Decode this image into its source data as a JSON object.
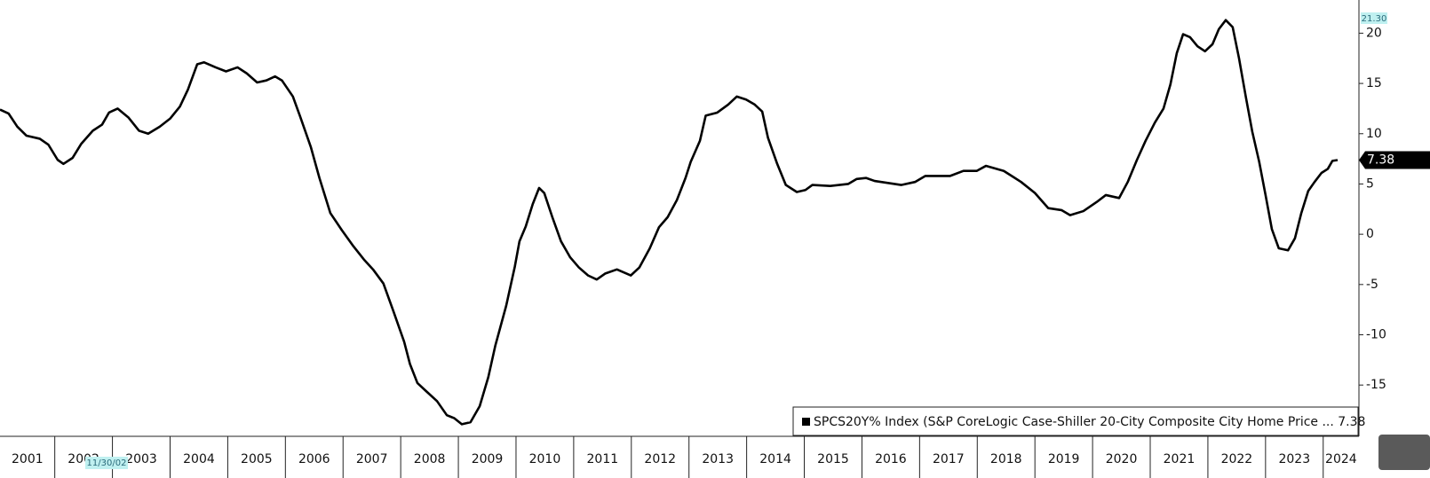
{
  "chart_data": {
    "type": "line",
    "series": [
      {
        "name": "SPCS20Y% Index (S&P CoreLogic Case-Shiller 20-City Composite City Home Price ... 7.38",
        "color": "#000000",
        "x": [
          2001.05,
          2001.2,
          2001.35,
          2001.51,
          2001.74,
          2001.89,
          2002.05,
          2002.15,
          2002.31,
          2002.46,
          2002.66,
          2002.82,
          2002.94,
          2003.09,
          2003.28,
          2003.46,
          2003.62,
          2003.82,
          2004.0,
          2004.17,
          2004.31,
          2004.47,
          2004.59,
          2004.79,
          2004.97,
          2005.17,
          2005.33,
          2005.51,
          2005.67,
          2005.82,
          2005.94,
          2006.13,
          2006.25,
          2006.44,
          2006.59,
          2006.78,
          2006.98,
          2007.18,
          2007.36,
          2007.52,
          2007.7,
          2007.87,
          2008.06,
          2008.16,
          2008.29,
          2008.44,
          2008.63,
          2008.8,
          2008.93,
          2009.06,
          2009.21,
          2009.37,
          2009.52,
          2009.64,
          2009.83,
          2009.98,
          2010.06,
          2010.17,
          2010.29,
          2010.4,
          2010.49,
          2010.63,
          2010.78,
          2010.94,
          2011.09,
          2011.25,
          2011.4,
          2011.55,
          2011.75,
          2011.99,
          2012.14,
          2012.32,
          2012.48,
          2012.63,
          2012.79,
          2012.94,
          2013.03,
          2013.19,
          2013.29,
          2013.49,
          2013.68,
          2013.83,
          2013.99,
          2014.14,
          2014.27,
          2014.37,
          2014.53,
          2014.68,
          2014.87,
          2015.02,
          2015.14,
          2015.45,
          2015.76,
          2015.91,
          2016.07,
          2016.22,
          2016.45,
          2016.68,
          2016.92,
          2017.1,
          2017.3,
          2017.53,
          2017.76,
          2017.99,
          2018.15,
          2018.46,
          2018.76,
          2019.0,
          2019.23,
          2019.46,
          2019.61,
          2019.84,
          2020.07,
          2020.23,
          2020.46,
          2020.61,
          2020.77,
          2020.92,
          2021.08,
          2021.23,
          2021.35,
          2021.46,
          2021.57,
          2021.69,
          2021.82,
          2021.95,
          2022.08,
          2022.19,
          2022.31,
          2022.43,
          2022.54,
          2022.66,
          2022.77,
          2022.89,
          2023.0,
          2023.11,
          2023.23,
          2023.39,
          2023.51,
          2023.62,
          2023.74,
          2023.85,
          2023.97,
          2024.08,
          2024.16,
          2024.25
        ],
        "values": [
          12.4,
          12.0,
          10.7,
          9.8,
          9.5,
          8.9,
          7.4,
          7.0,
          7.6,
          9.0,
          10.3,
          10.9,
          12.1,
          12.5,
          11.6,
          10.3,
          10.0,
          10.7,
          11.5,
          12.7,
          14.4,
          16.9,
          17.1,
          16.6,
          16.2,
          16.6,
          16.0,
          15.1,
          15.3,
          15.7,
          15.3,
          13.7,
          11.8,
          8.7,
          5.6,
          2.1,
          0.4,
          -1.2,
          -2.5,
          -3.5,
          -4.9,
          -7.6,
          -10.7,
          -12.9,
          -14.8,
          -15.6,
          -16.6,
          -18.0,
          -18.3,
          -18.9,
          -18.7,
          -17.1,
          -14.2,
          -11.1,
          -7.1,
          -3.2,
          -0.7,
          0.8,
          3.0,
          4.6,
          4.1,
          1.7,
          -0.7,
          -2.3,
          -3.3,
          -4.1,
          -4.5,
          -3.9,
          -3.5,
          -4.1,
          -3.3,
          -1.4,
          0.7,
          1.7,
          3.4,
          5.6,
          7.2,
          9.3,
          11.8,
          12.1,
          12.9,
          13.7,
          13.4,
          12.9,
          12.2,
          9.6,
          7.0,
          4.9,
          4.2,
          4.4,
          4.9,
          4.8,
          5.0,
          5.5,
          5.6,
          5.3,
          5.1,
          4.9,
          5.2,
          5.8,
          5.8,
          5.8,
          6.3,
          6.3,
          6.8,
          6.3,
          5.2,
          4.1,
          2.6,
          2.4,
          1.9,
          2.3,
          3.2,
          3.9,
          3.6,
          5.2,
          7.4,
          9.3,
          11.1,
          12.5,
          14.9,
          18.0,
          19.9,
          19.6,
          18.7,
          18.2,
          18.9,
          20.4,
          21.3,
          20.6,
          17.5,
          13.6,
          10.2,
          7.2,
          3.9,
          0.5,
          -1.4,
          -1.6,
          -0.4,
          2.1,
          4.3,
          5.2,
          6.1,
          6.5,
          7.3,
          7.38
        ]
      }
    ],
    "xlim": [
      2001.05,
      2024.62
    ],
    "xticks": [
      2001,
      2002,
      2003,
      2004,
      2005,
      2006,
      2007,
      2008,
      2009,
      2010,
      2011,
      2012,
      2013,
      2014,
      2015,
      2016,
      2017,
      2018,
      2019,
      2020,
      2021,
      2022,
      2023,
      2024
    ],
    "ylim": [
      -20.1,
      23.3
    ],
    "yticks": [
      20,
      15,
      10,
      5,
      0,
      -5,
      -10,
      -15
    ],
    "last_value_label": "7.38",
    "max_label": "21.30",
    "cursor_date_label": "11/30/02"
  }
}
